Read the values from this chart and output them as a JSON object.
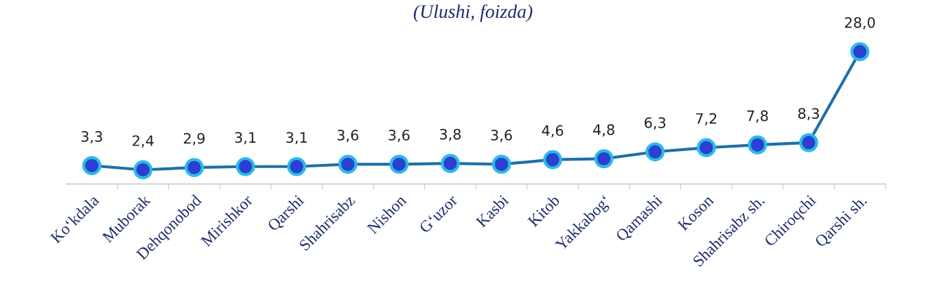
{
  "chart_data": {
    "type": "line",
    "title": "(Ulushi, foizda)",
    "categories": [
      "Ko‘kdala",
      "Muborak",
      "Dehqonobod",
      "Mirishkor",
      "Qarshi",
      "Shahrisabz",
      "Nishon",
      "G‘uzor",
      "Kasbi",
      "Kitob",
      "Yakkabog‘",
      "Qamashi",
      "Koson",
      "Shahrisabz sh.",
      "Chiroqchi",
      "Qarshi sh."
    ],
    "series": [
      {
        "color": "#1f6fa8",
        "values": [
          3.3,
          2.4,
          2.9,
          3.1,
          3.1,
          3.6,
          3.6,
          3.8,
          3.6,
          4.6,
          4.8,
          6.3,
          7.2,
          7.8,
          8.3,
          28.0
        ],
        "value_labels": [
          "3,3",
          "2,4",
          "2,9",
          "3,1",
          "3,1",
          "3,6",
          "3,6",
          "3,8",
          "3,6",
          "4,6",
          "4,8",
          "6,3",
          "7,2",
          "7,8",
          "8,3",
          "28,0"
        ]
      }
    ],
    "tick_labels": "x",
    "marker": "circle",
    "line_style": "solid",
    "grid": false,
    "legend": false
  }
}
